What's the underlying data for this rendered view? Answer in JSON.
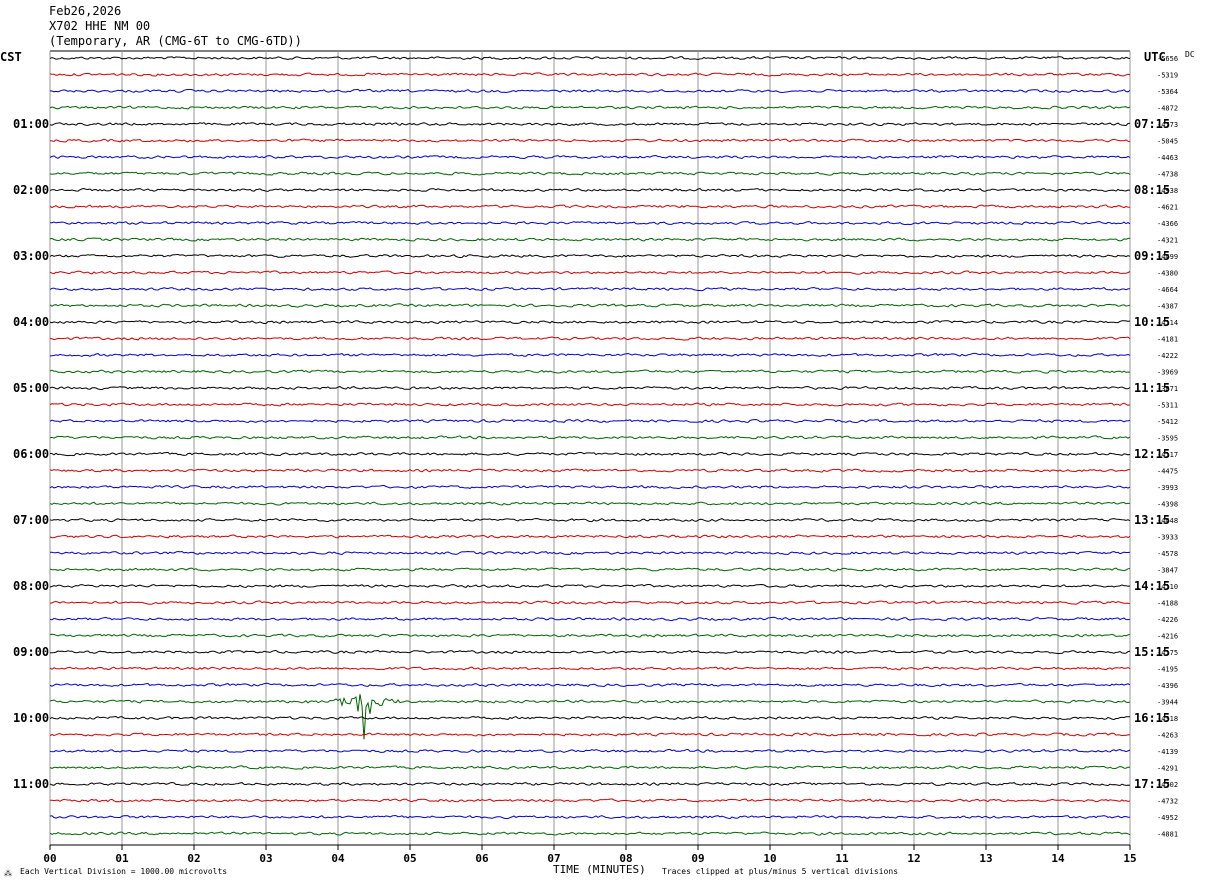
{
  "header": {
    "date": "Feb26,2026",
    "station": "X702 HHE NM 00",
    "network": "(Temporary, AR (CMG-6T to CMG-6TD))"
  },
  "left_tz": "CST",
  "right_tz": "UTC",
  "dc_label": "DC",
  "chart_data": {
    "type": "line",
    "chart_kind": "helicorder",
    "xlabel": "TIME (MINUTES)",
    "x_ticks": [
      "00",
      "01",
      "02",
      "03",
      "04",
      "05",
      "06",
      "07",
      "08",
      "09",
      "10",
      "11",
      "12",
      "13",
      "14",
      "15"
    ],
    "xlim": [
      0,
      15
    ],
    "trace_colors": [
      "#000000",
      "#cc0000",
      "#0000cc",
      "#006400"
    ],
    "left_hour_labels": [
      "01:00",
      "02:00",
      "03:00",
      "04:00",
      "05:00",
      "06:00",
      "07:00",
      "08:00",
      "09:00",
      "10:00",
      "11:00"
    ],
    "right_hour_labels": [
      "07:15",
      "08:15",
      "09:15",
      "10:15",
      "11:15",
      "12:15",
      "13:15",
      "14:15",
      "15:15",
      "16:15",
      "17:15"
    ],
    "dc_offsets": [
      "-5656",
      "-5319",
      "-5364",
      "-4872",
      "-4773",
      "-5045",
      "-4463",
      "-4738",
      "-4938",
      "-4621",
      "-4366",
      "-4321",
      "-4499",
      "-4380",
      "-4664",
      "-4387",
      "-4114",
      "-4181",
      "-4222",
      "-3969",
      "-3871",
      "-5311",
      "-5412",
      "-3595",
      "-4117",
      "-4475",
      "-3993",
      "-4398",
      "-4448",
      "-3933",
      "-4578",
      "-3847",
      "-4110",
      "-4188",
      "-4226",
      "-4216",
      "-4175",
      "-4195",
      "-4396",
      "-3944",
      "-4318",
      "-4263",
      "-4139",
      "-4291",
      "-4702",
      "-4732",
      "-4952",
      "-4881"
    ],
    "events": [
      {
        "trace": 39,
        "minute_start": 3.0,
        "minute_end": 5.0,
        "peak_minute": 4.35
      }
    ],
    "footer_left": "Each Vertical Division = 1000.00 microvolts",
    "footer_right": "Traces clipped at plus/minus 5 vertical divisions"
  }
}
